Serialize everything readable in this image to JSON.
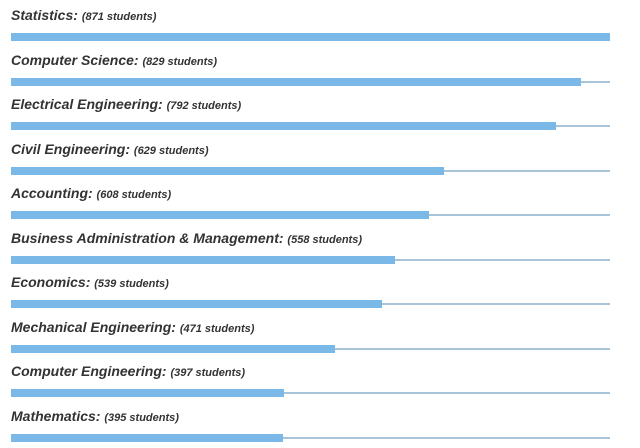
{
  "chart_data": {
    "type": "bar",
    "orientation": "horizontal",
    "categories": [
      "Statistics",
      "Computer Science",
      "Electrical Engineering",
      "Civil Engineering",
      "Accounting",
      "Business Administration & Management",
      "Economics",
      "Mechanical Engineering",
      "Computer Engineering",
      "Mathematics"
    ],
    "values": [
      871,
      829,
      792,
      629,
      608,
      558,
      539,
      471,
      397,
      395
    ],
    "value_labels": [
      "(871 students)",
      "(829 students)",
      "(792 students)",
      "(629 students)",
      "(608 students)",
      "(558 students)",
      "(539 students)",
      "(471 students)",
      "(397 students)",
      "(395 students)"
    ],
    "xlim": [
      0,
      871
    ],
    "grid": false,
    "colors": {
      "bar": "#7ab8e8",
      "track": "#a7c4d8",
      "text": "#333333"
    }
  }
}
